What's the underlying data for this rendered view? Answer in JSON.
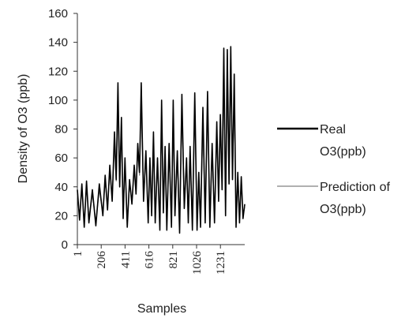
{
  "chart_data": {
    "type": "line",
    "title": "",
    "xlabel": "Samples",
    "ylabel": "Density of O3 (ppb)",
    "ylim": [
      0,
      160
    ],
    "yticks": [
      0,
      20,
      40,
      60,
      80,
      100,
      120,
      140,
      160
    ],
    "xlim": [
      1,
      1440
    ],
    "xticks": [
      1,
      206,
      411,
      616,
      821,
      1026,
      1231
    ],
    "xtick_labels": [
      "1",
      "206",
      "411",
      "616",
      "821",
      "1026",
      "1231"
    ],
    "grid": false,
    "legend_position": "right",
    "series": [
      {
        "name": "Real O3(ppb)",
        "color": "#000000",
        "x": [
          1,
          20,
          40,
          60,
          80,
          100,
          130,
          160,
          190,
          220,
          240,
          260,
          280,
          300,
          320,
          335,
          350,
          365,
          380,
          395,
          410,
          430,
          450,
          470,
          490,
          505,
          520,
          535,
          550,
          570,
          590,
          610,
          625,
          640,
          655,
          670,
          690,
          710,
          725,
          740,
          755,
          770,
          790,
          810,
          825,
          840,
          860,
          880,
          900,
          920,
          940,
          955,
          970,
          990,
          1010,
          1030,
          1045,
          1060,
          1080,
          1100,
          1120,
          1140,
          1160,
          1180,
          1200,
          1215,
          1230,
          1245,
          1260,
          1275,
          1290,
          1305,
          1320,
          1335,
          1350,
          1365,
          1380,
          1395,
          1410,
          1425,
          1440
        ],
        "values": [
          38,
          17,
          42,
          12,
          44,
          15,
          38,
          13,
          42,
          20,
          48,
          24,
          55,
          30,
          78,
          45,
          112,
          40,
          88,
          18,
          60,
          12,
          45,
          28,
          55,
          35,
          70,
          50,
          112,
          30,
          65,
          15,
          60,
          20,
          78,
          15,
          60,
          10,
          100,
          22,
          68,
          10,
          70,
          12,
          100,
          20,
          65,
          8,
          104,
          25,
          60,
          15,
          68,
          10,
          105,
          10,
          50,
          12,
          95,
          15,
          106,
          12,
          70,
          15,
          85,
          30,
          90,
          38,
          136,
          20,
          135,
          42,
          137,
          45,
          118,
          12,
          50,
          15,
          47,
          18,
          28
        ]
      },
      {
        "name": "Prediction of O3(ppb)",
        "color": "#808080",
        "x": [
          1,
          20,
          40,
          60,
          80,
          100,
          130,
          160,
          190,
          220,
          240,
          260,
          280,
          300,
          320,
          335,
          350,
          365,
          380,
          395,
          410,
          430,
          450,
          470,
          490,
          505,
          520,
          535,
          550,
          570,
          590,
          610,
          625,
          640,
          655,
          670,
          690,
          710,
          725,
          740,
          755,
          770,
          790,
          810,
          825,
          840,
          860,
          880,
          900,
          920,
          940,
          955,
          970,
          990,
          1010,
          1030,
          1045,
          1060,
          1080,
          1100,
          1120,
          1140,
          1160,
          1180,
          1200,
          1215,
          1230,
          1245,
          1260,
          1275,
          1290,
          1305,
          1320,
          1335,
          1350,
          1365,
          1380,
          1395,
          1410,
          1425,
          1440
        ],
        "values": [
          35,
          20,
          38,
          15,
          40,
          18,
          35,
          16,
          38,
          22,
          44,
          26,
          50,
          32,
          70,
          44,
          95,
          42,
          80,
          22,
          55,
          16,
          42,
          30,
          52,
          36,
          64,
          48,
          98,
          32,
          60,
          18,
          55,
          22,
          70,
          18,
          56,
          14,
          88,
          24,
          62,
          14,
          64,
          16,
          90,
          22,
          60,
          12,
          92,
          27,
          56,
          18,
          62,
          14,
          92,
          14,
          48,
          15,
          85,
          18,
          94,
          16,
          64,
          18,
          78,
          32,
          82,
          40,
          118,
          24,
          115,
          44,
          120,
          46,
          105,
          16,
          47,
          18,
          44,
          20,
          26
        ]
      }
    ]
  },
  "legend": {
    "real_line1": "Real",
    "real_line2": "O3(ppb)",
    "pred_line1": "Prediction of",
    "pred_line2": "O3(ppb)"
  }
}
